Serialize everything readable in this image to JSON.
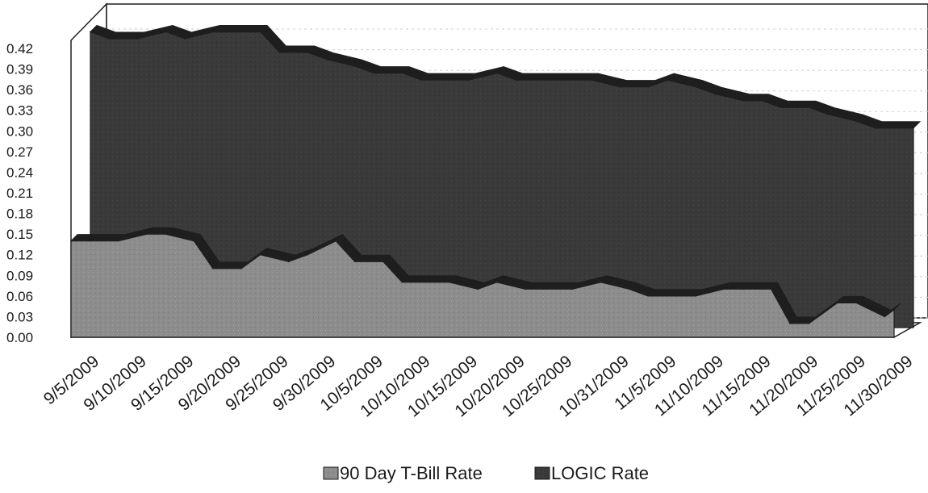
{
  "chart_data": {
    "type": "area",
    "title": "",
    "xlabel": "",
    "ylabel": "",
    "ylim": [
      0,
      0.42
    ],
    "y_ticks": [
      "0.00",
      "0.03",
      "0.06",
      "0.09",
      "0.12",
      "0.15",
      "0.18",
      "0.21",
      "0.24",
      "0.27",
      "0.30",
      "0.33",
      "0.36",
      "0.39",
      "0.42"
    ],
    "x_tick_labels": [
      "9/5/2009",
      "9/10/2009",
      "9/15/2009",
      "9/20/2009",
      "9/25/2009",
      "9/30/2009",
      "10/5/2009",
      "10/10/2009",
      "10/15/2009",
      "10/20/2009",
      "10/25/2009",
      "10/31/2009",
      "11/5/2009",
      "11/10/2009",
      "11/15/2009",
      "11/20/2009",
      "11/25/2009",
      "11/30/2009"
    ],
    "three_d": true,
    "grid": true,
    "legend_position": "bottom",
    "colors": {
      "tbill": "#8c8c8c",
      "logic": "#3a3a3a",
      "edge": "#1e1e1e"
    },
    "series": [
      {
        "name": "90 Day T-Bill Rate",
        "x": [
          "9/5/2009",
          "9/7/2009",
          "9/10/2009",
          "9/13/2009",
          "9/15/2009",
          "9/18/2009",
          "9/20/2009",
          "9/23/2009",
          "9/25/2009",
          "9/28/2009",
          "9/30/2009",
          "10/3/2009",
          "10/5/2009",
          "10/8/2009",
          "10/10/2009",
          "10/13/2009",
          "10/15/2009",
          "10/18/2009",
          "10/20/2009",
          "10/23/2009",
          "10/25/2009",
          "10/28/2009",
          "10/31/2009",
          "11/3/2009",
          "11/5/2009",
          "11/8/2009",
          "11/10/2009",
          "11/13/2009",
          "11/15/2009",
          "11/17/2009",
          "11/18/2009",
          "11/20/2009",
          "11/22/2009",
          "11/25/2009",
          "11/27/2009",
          "11/30/2009",
          "12/1/2009"
        ],
        "values": [
          0.14,
          0.14,
          0.14,
          0.15,
          0.15,
          0.14,
          0.1,
          0.1,
          0.12,
          0.11,
          0.12,
          0.14,
          0.11,
          0.11,
          0.08,
          0.08,
          0.08,
          0.07,
          0.08,
          0.07,
          0.07,
          0.07,
          0.08,
          0.07,
          0.06,
          0.06,
          0.06,
          0.07,
          0.07,
          0.07,
          0.07,
          0.02,
          0.02,
          0.05,
          0.05,
          0.03,
          0.04
        ]
      },
      {
        "name": "LOGIC Rate",
        "x": [
          "9/5/2009",
          "9/7/2009",
          "9/10/2009",
          "9/13/2009",
          "9/15/2009",
          "9/18/2009",
          "9/20/2009",
          "9/23/2009",
          "9/25/2009",
          "9/28/2009",
          "9/30/2009",
          "10/3/2009",
          "10/5/2009",
          "10/8/2009",
          "10/10/2009",
          "10/13/2009",
          "10/15/2009",
          "10/18/2009",
          "10/20/2009",
          "10/23/2009",
          "10/25/2009",
          "10/28/2009",
          "10/31/2009",
          "11/3/2009",
          "11/5/2009",
          "11/8/2009",
          "11/10/2009",
          "11/13/2009",
          "11/15/2009",
          "11/17/2009",
          "11/18/2009",
          "11/20/2009",
          "11/22/2009",
          "11/25/2009",
          "11/27/2009",
          "11/30/2009",
          "12/1/2009"
        ],
        "values": [
          0.43,
          0.42,
          0.42,
          0.43,
          0.42,
          0.43,
          0.43,
          0.43,
          0.4,
          0.4,
          0.39,
          0.38,
          0.37,
          0.37,
          0.36,
          0.36,
          0.36,
          0.37,
          0.36,
          0.36,
          0.36,
          0.36,
          0.35,
          0.35,
          0.36,
          0.35,
          0.34,
          0.33,
          0.33,
          0.32,
          0.32,
          0.32,
          0.31,
          0.3,
          0.29,
          0.29,
          0.29
        ]
      }
    ]
  }
}
